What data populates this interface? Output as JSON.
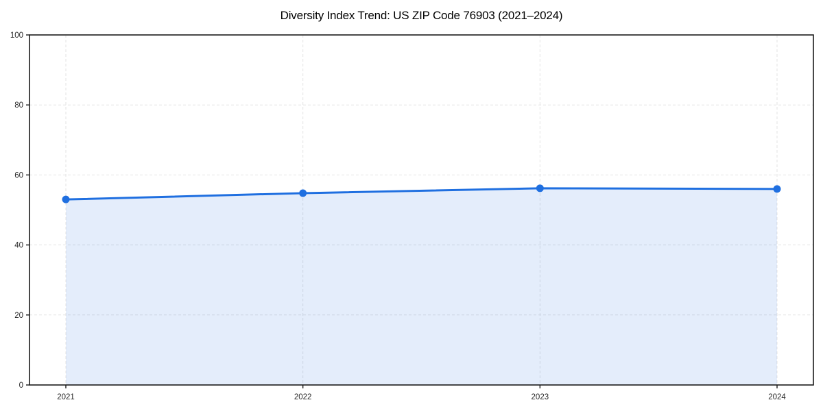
{
  "figure": {
    "background": "#ffffff"
  },
  "chart_data": {
    "type": "line",
    "title": "Diversity Index Trend: US ZIP Code 76903 (2021–2024)",
    "categories": [
      "2021",
      "2022",
      "2023",
      "2024"
    ],
    "series": [
      {
        "name": "Diversity Index",
        "values": [
          53.0,
          54.8,
          56.2,
          56.0
        ]
      }
    ],
    "xlabel": "",
    "ylabel": "",
    "ylim": [
      0,
      100
    ],
    "yticks": [
      0,
      20,
      40,
      60,
      80,
      100
    ],
    "grid": true,
    "grid_style": "dashed",
    "legend_position": "none",
    "area_fill": true,
    "marker": "circle",
    "colors": {
      "line": "#1f6fe0",
      "marker": "#1f6fe0",
      "area": "rgba(31,111,224,0.12)",
      "grid": "#e3e3e3",
      "axis": "#1a1a1a",
      "tick_label": "#262626",
      "title": "#000000"
    }
  }
}
